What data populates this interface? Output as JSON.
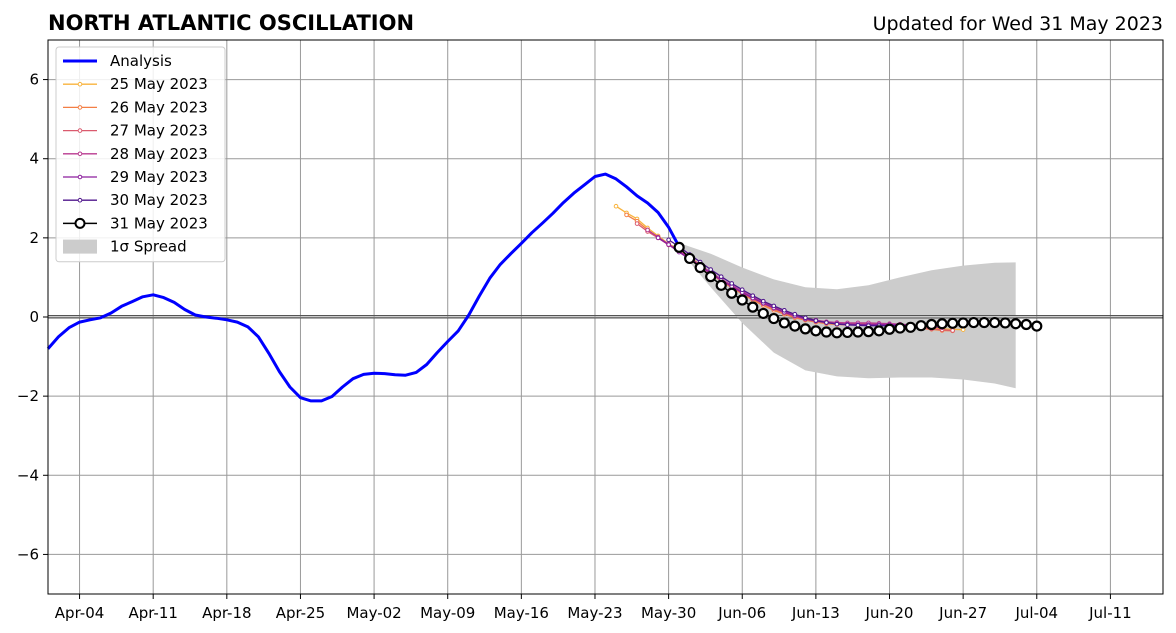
{
  "chart_data": {
    "type": "line",
    "title": "NORTH ATLANTIC OSCILLATION",
    "subtitle": "Updated for Wed 31 May 2023",
    "ylim": [
      -7,
      7
    ],
    "y_ticks": [
      -6,
      -4,
      -2,
      0,
      2,
      4,
      6
    ],
    "y_tick_labels": [
      "−6",
      "−4",
      "−2",
      "0",
      "2",
      "4",
      "6"
    ],
    "x_range": [
      "2023-04-01",
      "2023-07-16"
    ],
    "x_ticks": [
      "2023-04-04",
      "2023-04-11",
      "2023-04-18",
      "2023-04-25",
      "2023-05-02",
      "2023-05-09",
      "2023-05-16",
      "2023-05-23",
      "2023-05-30",
      "2023-06-06",
      "2023-06-13",
      "2023-06-20",
      "2023-06-27",
      "2023-07-04",
      "2023-07-11"
    ],
    "x_tick_labels": [
      "Apr-04",
      "Apr-11",
      "Apr-18",
      "Apr-25",
      "May-02",
      "May-09",
      "May-16",
      "May-23",
      "May-30",
      "Jun-06",
      "Jun-13",
      "Jun-20",
      "Jun-27",
      "Jul-04",
      "Jul-11"
    ],
    "grid": true,
    "legend_position": "upper-left",
    "analysis": {
      "name": "Analysis",
      "color": "#0000ff",
      "start_date": "2023-04-01",
      "values": [
        -0.8,
        -0.5,
        -0.27,
        -0.13,
        -0.07,
        -0.02,
        0.1,
        0.27,
        0.39,
        0.51,
        0.56,
        0.49,
        0.37,
        0.19,
        0.05,
        0.0,
        -0.03,
        -0.07,
        -0.13,
        -0.25,
        -0.5,
        -0.92,
        -1.38,
        -1.77,
        -2.04,
        -2.12,
        -2.12,
        -2.01,
        -1.77,
        -1.56,
        -1.45,
        -1.42,
        -1.43,
        -1.46,
        -1.47,
        -1.4,
        -1.2,
        -0.9,
        -0.62,
        -0.35,
        0.05,
        0.53,
        0.98,
        1.33,
        1.6,
        1.86,
        2.13,
        2.37,
        2.62,
        2.89,
        3.13,
        3.34,
        3.55,
        3.61,
        3.49,
        3.29,
        3.06,
        2.88,
        2.64,
        2.27,
        1.78
      ]
    },
    "forecasts": [
      {
        "name": "25 May 2023",
        "color": "#f8b33c",
        "start_date": "2023-05-25",
        "values": [
          2.8,
          2.63,
          2.48,
          2.25,
          2.05,
          1.85,
          1.7,
          1.52,
          1.32,
          1.12,
          0.95,
          0.78,
          0.62,
          0.47,
          0.33,
          0.2,
          0.1,
          0.02,
          -0.05,
          -0.1,
          -0.14,
          -0.17,
          -0.18,
          -0.19,
          -0.19,
          -0.19,
          -0.19,
          -0.2,
          -0.22,
          -0.25,
          -0.28,
          -0.3,
          -0.31,
          -0.32
        ]
      },
      {
        "name": "26 May 2023",
        "color": "#f37f45",
        "start_date": "2023-05-26",
        "values": [
          2.58,
          2.42,
          2.2,
          2.0,
          1.83,
          1.66,
          1.46,
          1.27,
          1.09,
          0.91,
          0.74,
          0.58,
          0.43,
          0.29,
          0.17,
          0.07,
          -0.02,
          -0.08,
          -0.13,
          -0.17,
          -0.19,
          -0.2,
          -0.2,
          -0.2,
          -0.2,
          -0.21,
          -0.23,
          -0.26,
          -0.29,
          -0.31,
          -0.34,
          -0.35
        ]
      },
      {
        "name": "27 May 2023",
        "color": "#da5a6e",
        "start_date": "2023-05-27",
        "values": [
          2.36,
          2.16,
          2.0,
          1.82,
          1.66,
          1.47,
          1.28,
          1.1,
          0.93,
          0.77,
          0.61,
          0.46,
          0.33,
          0.21,
          0.1,
          0.01,
          -0.06,
          -0.11,
          -0.15,
          -0.17,
          -0.18,
          -0.18,
          -0.18,
          -0.18,
          -0.19,
          -0.21,
          -0.24,
          -0.27,
          -0.3,
          -0.32,
          -0.34
        ]
      },
      {
        "name": "28 May 2023",
        "color": "#b8388f",
        "start_date": "2023-05-28",
        "values": [
          2.2,
          2.02,
          1.84,
          1.67,
          1.5,
          1.31,
          1.13,
          0.96,
          0.8,
          0.65,
          0.5,
          0.37,
          0.25,
          0.14,
          0.05,
          -0.03,
          -0.08,
          -0.12,
          -0.14,
          -0.15,
          -0.15,
          -0.15,
          -0.16,
          -0.17,
          -0.18,
          -0.2,
          -0.23,
          -0.25,
          -0.27
        ]
      },
      {
        "name": "29 May 2023",
        "color": "#8c1f9e",
        "start_date": "2023-05-29",
        "values": [
          2.0,
          1.83,
          1.64,
          1.46,
          1.28,
          1.1,
          0.93,
          0.77,
          0.62,
          0.48,
          0.35,
          0.23,
          0.12,
          0.03,
          -0.05,
          -0.1,
          -0.14,
          -0.17,
          -0.18,
          -0.19,
          -0.19,
          -0.19,
          -0.19,
          -0.2,
          -0.21,
          -0.23,
          -0.24
        ]
      },
      {
        "name": "30 May 2023",
        "color": "#4f168c",
        "start_date": "2023-05-30",
        "values": [
          1.95,
          1.78,
          1.58,
          1.39,
          1.2,
          1.02,
          0.85,
          0.69,
          0.54,
          0.4,
          0.28,
          0.17,
          0.07,
          -0.02,
          -0.09,
          -0.14,
          -0.18,
          -0.2,
          -0.21,
          -0.22,
          -0.22,
          -0.22,
          -0.22,
          -0.22,
          -0.22,
          -0.22
        ]
      },
      {
        "name": "31 May 2023",
        "color": "#000000",
        "marker": "open-circle",
        "start_date": "2023-05-31",
        "values": [
          1.76,
          1.48,
          1.25,
          1.02,
          0.8,
          0.6,
          0.43,
          0.25,
          0.09,
          -0.04,
          -0.15,
          -0.23,
          -0.3,
          -0.35,
          -0.38,
          -0.4,
          -0.39,
          -0.38,
          -0.37,
          -0.35,
          -0.31,
          -0.28,
          -0.26,
          -0.22,
          -0.19,
          -0.17,
          -0.16,
          -0.15,
          -0.14,
          -0.14,
          -0.14,
          -0.15,
          -0.17,
          -0.19,
          -0.23
        ]
      }
    ],
    "spread": {
      "name": "1σ Spread",
      "color": "#cccccc",
      "x": [
        "2023-05-31",
        "2023-06-03",
        "2023-06-06",
        "2023-06-09",
        "2023-06-12",
        "2023-06-15",
        "2023-06-18",
        "2023-06-21",
        "2023-06-24",
        "2023-06-27",
        "2023-06-30",
        "2023-07-02"
      ],
      "upper": [
        1.87,
        1.6,
        1.25,
        0.95,
        0.75,
        0.7,
        0.8,
        1.0,
        1.18,
        1.3,
        1.37,
        1.38
      ],
      "lower": [
        1.7,
        0.75,
        -0.15,
        -0.9,
        -1.35,
        -1.5,
        -1.55,
        -1.53,
        -1.53,
        -1.58,
        -1.68,
        -1.8
      ]
    }
  }
}
